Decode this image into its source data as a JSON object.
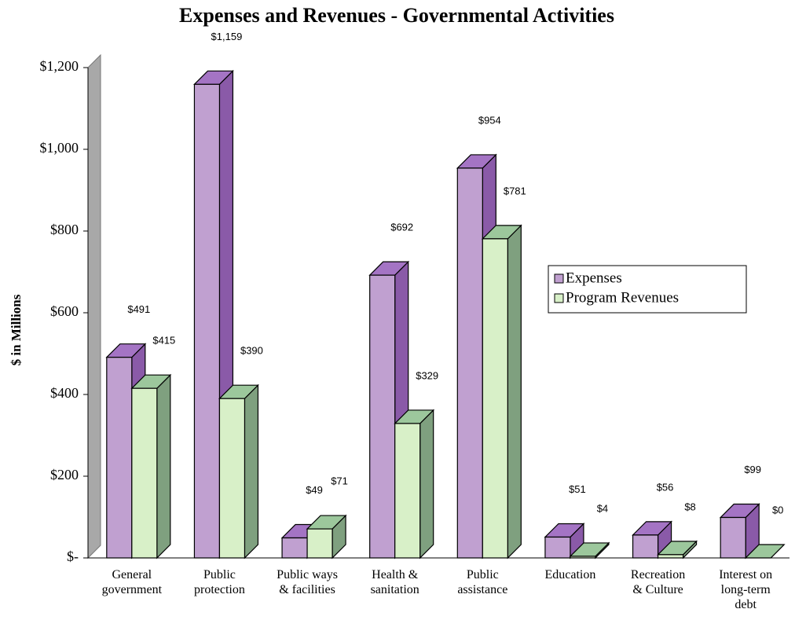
{
  "chart_data": {
    "type": "bar3d",
    "title": "Expenses and Revenues - Governmental Activities",
    "y_label": "$ in Millions",
    "categories": [
      "General\ngovernment",
      "Public\nprotection",
      "Public ways\n& facilities",
      "Health &\nsanitation",
      "Public\nassistance",
      "Education",
      "Recreation\n& Culture",
      "Interest on\nlong-term\ndebt"
    ],
    "series": [
      {
        "name": "Expenses",
        "color": "#c0a0d0",
        "side": "#8a5aa8",
        "top": "#a474c4",
        "values": [
          491,
          1159,
          49,
          692,
          954,
          51,
          56,
          99
        ],
        "value_labels": [
          "$491",
          "$1,159",
          "$49",
          "$692",
          "$954",
          "$51",
          "$56",
          "$99"
        ]
      },
      {
        "name": "Program Revenues",
        "color": "#d8f0c8",
        "side": "#7fa07f",
        "top": "#9cc79c",
        "values": [
          415,
          390,
          71,
          329,
          781,
          4,
          8,
          0
        ],
        "value_labels": [
          "$415",
          "$390",
          "$71",
          "$329",
          "$781",
          "$4",
          "$8",
          "$0"
        ]
      }
    ],
    "ylim": [
      0,
      1200
    ],
    "yticks": [
      {
        "value": 0,
        "label": "$-"
      },
      {
        "value": 200,
        "label": "$200"
      },
      {
        "value": 400,
        "label": "$400"
      },
      {
        "value": 600,
        "label": "$600"
      },
      {
        "value": 800,
        "label": "$800"
      },
      {
        "value": 1000,
        "label": "$1,000"
      },
      {
        "value": 1200,
        "label": "$1,200"
      }
    ],
    "legend": "right"
  }
}
